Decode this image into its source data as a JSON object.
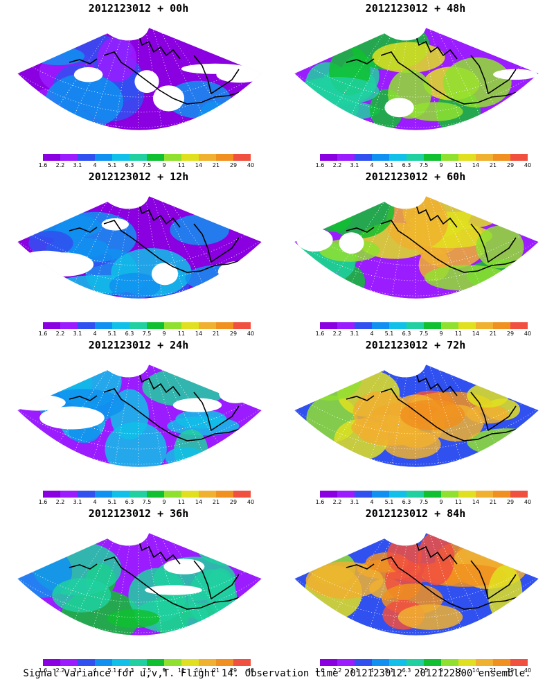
{
  "panels": [
    {
      "title": "2012123012 + 00h",
      "intensity": 0.15,
      "white_fraction": "high"
    },
    {
      "title": "2012123012 + 48h",
      "intensity": 0.55,
      "white_fraction": "low"
    },
    {
      "title": "2012123012 + 12h",
      "intensity": 0.25,
      "white_fraction": "high"
    },
    {
      "title": "2012123012 + 60h",
      "intensity": 0.65,
      "white_fraction": "low"
    },
    {
      "title": "2012123012 + 24h",
      "intensity": 0.35,
      "white_fraction": "medium"
    },
    {
      "title": "2012123012 + 72h",
      "intensity": 0.75,
      "white_fraction": "none"
    },
    {
      "title": "2012123012 + 36h",
      "intensity": 0.45,
      "white_fraction": "low"
    },
    {
      "title": "2012123012 + 84h",
      "intensity": 0.85,
      "white_fraction": "none"
    }
  ],
  "colorbar": {
    "labels": [
      "1.6",
      "2.2",
      "3.1",
      "4",
      "5.1",
      "6.3",
      "7.5",
      "9",
      "11",
      "14",
      "21",
      "29",
      "40"
    ],
    "colors": [
      "#8a00e0",
      "#9a1cff",
      "#3050f0",
      "#1090f0",
      "#10c0e8",
      "#20d0a0",
      "#10c030",
      "#90e030",
      "#e0e020",
      "#f0b030",
      "#f09020",
      "#f05040"
    ]
  },
  "caption": "Signal Variance for u,v,T. Flight 14. Observation time 2012123012. 2012122800 ensemble."
}
